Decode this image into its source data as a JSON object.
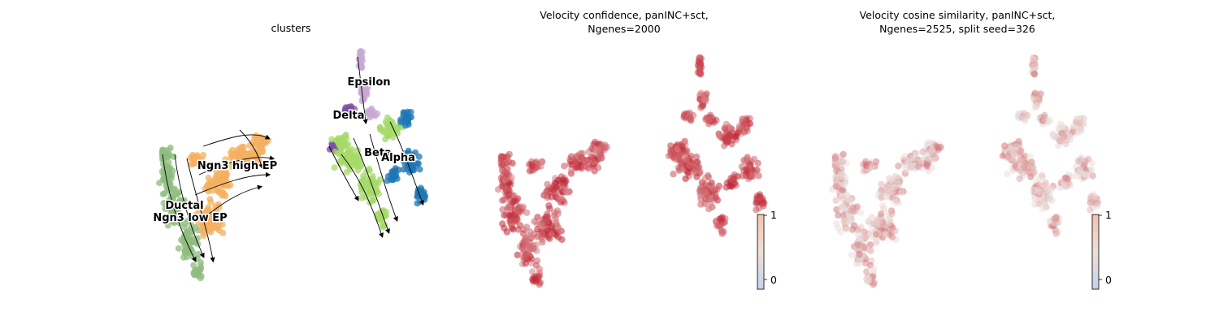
{
  "chart_data": [
    {
      "type": "scatter",
      "title": "clusters",
      "subtitle": "",
      "clusters": [
        {
          "name": "Ductal",
          "color": "#8fbc7f"
        },
        {
          "name": "Ngn3 low EP",
          "color": "#8fbc7f"
        },
        {
          "name": "Ngn3 high EP",
          "color": "#f4b060"
        },
        {
          "name": "Epsilon",
          "color": "#c7a8d4"
        },
        {
          "name": "Delta",
          "color": "#7e4fa6"
        },
        {
          "name": "Beta",
          "color": "#a6d96a"
        },
        {
          "name": "Alpha",
          "color": "#1f77b4"
        }
      ],
      "streamlines": true
    },
    {
      "type": "scatter",
      "title": "Velocity confidence, panINC+sct,",
      "subtitle": "Ngenes=2000",
      "colorbar": {
        "ticks": [
          "1",
          "0"
        ]
      },
      "colormap": "coolwarm"
    },
    {
      "type": "scatter",
      "title": "Velocity cosine similarity, panINC+sct,",
      "subtitle": "Ngenes=2525, split seed=326",
      "colorbar": {
        "ticks": [
          "1",
          "0"
        ]
      },
      "colormap": "coolwarm"
    }
  ]
}
